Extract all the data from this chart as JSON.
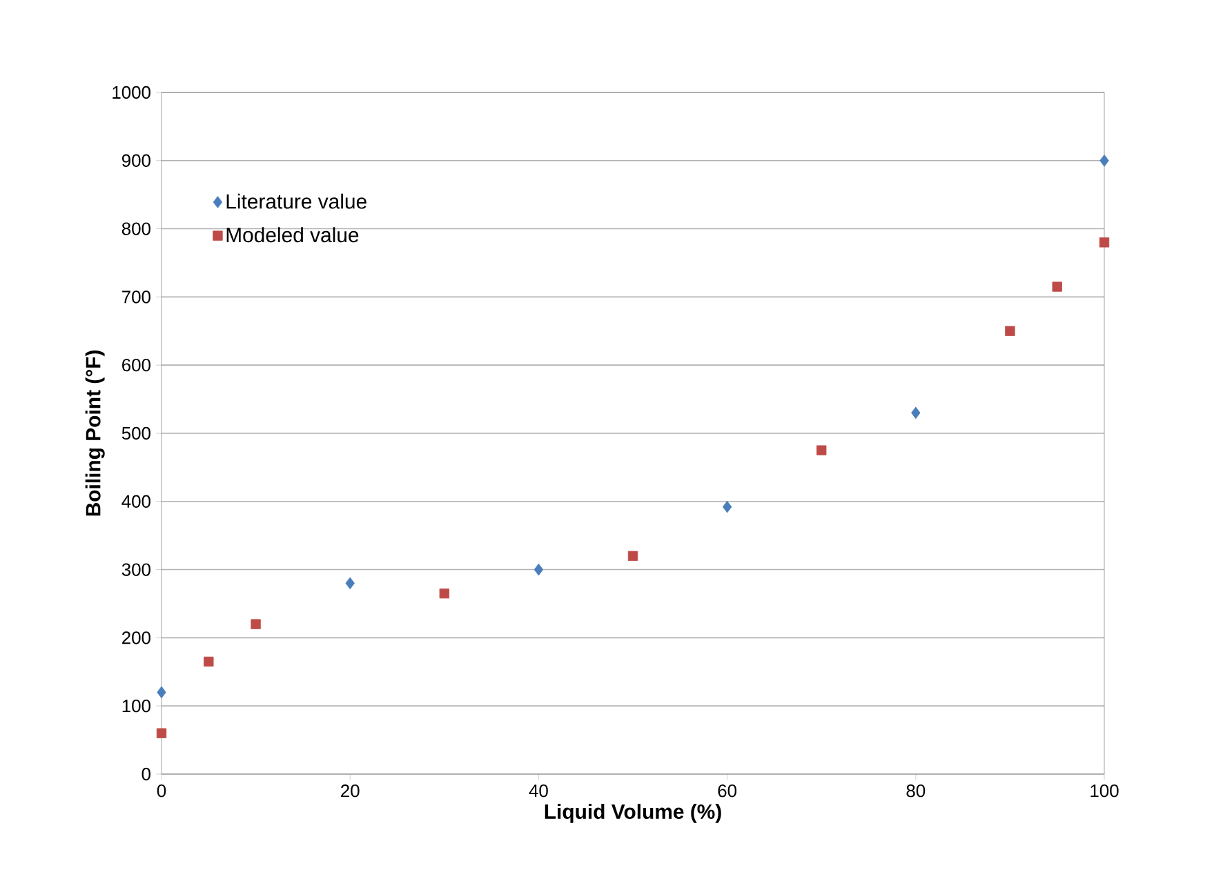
{
  "chart_data": {
    "type": "scatter",
    "xlabel": "Liquid Volume (%)",
    "ylabel": "Boiling Point (°F)",
    "xlim": [
      0,
      100
    ],
    "xticks": [
      0,
      20,
      40,
      60,
      80,
      100
    ],
    "ylim": [
      0,
      1000
    ],
    "yticks": [
      0,
      100,
      200,
      300,
      400,
      500,
      600,
      700,
      800,
      900,
      1000
    ],
    "grid": "y",
    "legend": "top left",
    "series": [
      {
        "name": "Literature value",
        "color": "#4a7ebb",
        "marker": "diamond",
        "x": [
          0,
          20,
          40,
          60,
          80,
          100
        ],
        "values": [
          120,
          280,
          300,
          392,
          530,
          900
        ]
      },
      {
        "name": "Modeled value",
        "color": "#be4b48",
        "marker": "square",
        "x": [
          0,
          5,
          10,
          30,
          50,
          70,
          90,
          95,
          100
        ],
        "values": [
          60,
          165,
          220,
          265,
          320,
          475,
          650,
          715,
          780
        ]
      }
    ]
  }
}
